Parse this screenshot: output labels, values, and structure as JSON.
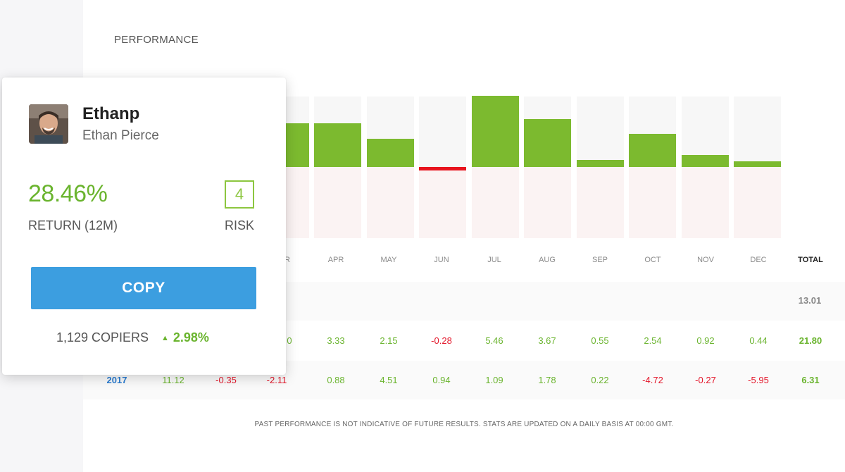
{
  "section_title": "PERFORMANCE",
  "months": [
    "APR",
    "MAY",
    "JUN",
    "JUL",
    "AUG",
    "SEP",
    "OCT",
    "NOV",
    "DEC"
  ],
  "partial_header": "R",
  "total_label": "TOTAL",
  "colors": {
    "positive": "#7cba2f",
    "negative": "#e8141e",
    "accent": "#3c9ee0",
    "year": "#2a7cd1"
  },
  "chart_data": {
    "type": "bar",
    "categories": [
      "MAR",
      "APR",
      "MAY",
      "JUN",
      "JUL",
      "AUG",
      "SEP",
      "OCT",
      "NOV",
      "DEC"
    ],
    "values": [
      3.33,
      3.33,
      2.15,
      -0.28,
      5.46,
      3.67,
      0.55,
      2.54,
      0.92,
      0.44
    ],
    "ylim": [
      -5.5,
      5.5
    ],
    "grid": false
  },
  "table": {
    "row_partial_total": "13.01",
    "row_current": {
      "partial_prefix": "0",
      "values": [
        "3.33",
        "2.15",
        "-0.28",
        "5.46",
        "3.67",
        "0.55",
        "2.54",
        "0.92",
        "0.44"
      ],
      "total": "21.80"
    },
    "row_2017": {
      "year": "2017",
      "values": [
        "11.12",
        "-0.35",
        "-2.11",
        "0.88",
        "4.51",
        "0.94",
        "1.09",
        "1.78",
        "0.22",
        "-4.72",
        "-0.27",
        "-5.95"
      ],
      "total": "6.31"
    }
  },
  "disclaimer": "PAST PERFORMANCE IS NOT INDICATIVE OF FUTURE RESULTS. STATS ARE UPDATED ON A DAILY BASIS AT 00:00 GMT.",
  "card": {
    "username": "Ethanp",
    "full_name": "Ethan Pierce",
    "return_value": "28.46%",
    "return_label": "RETURN (12M)",
    "risk_value": "4",
    "risk_label": "RISK",
    "copy_label": "COPY",
    "copiers": "1,129 COPIERS",
    "copiers_change": "2.98%",
    "avatar_icon": "user-avatar-photo",
    "trend_icon": "triangle-up-icon"
  }
}
